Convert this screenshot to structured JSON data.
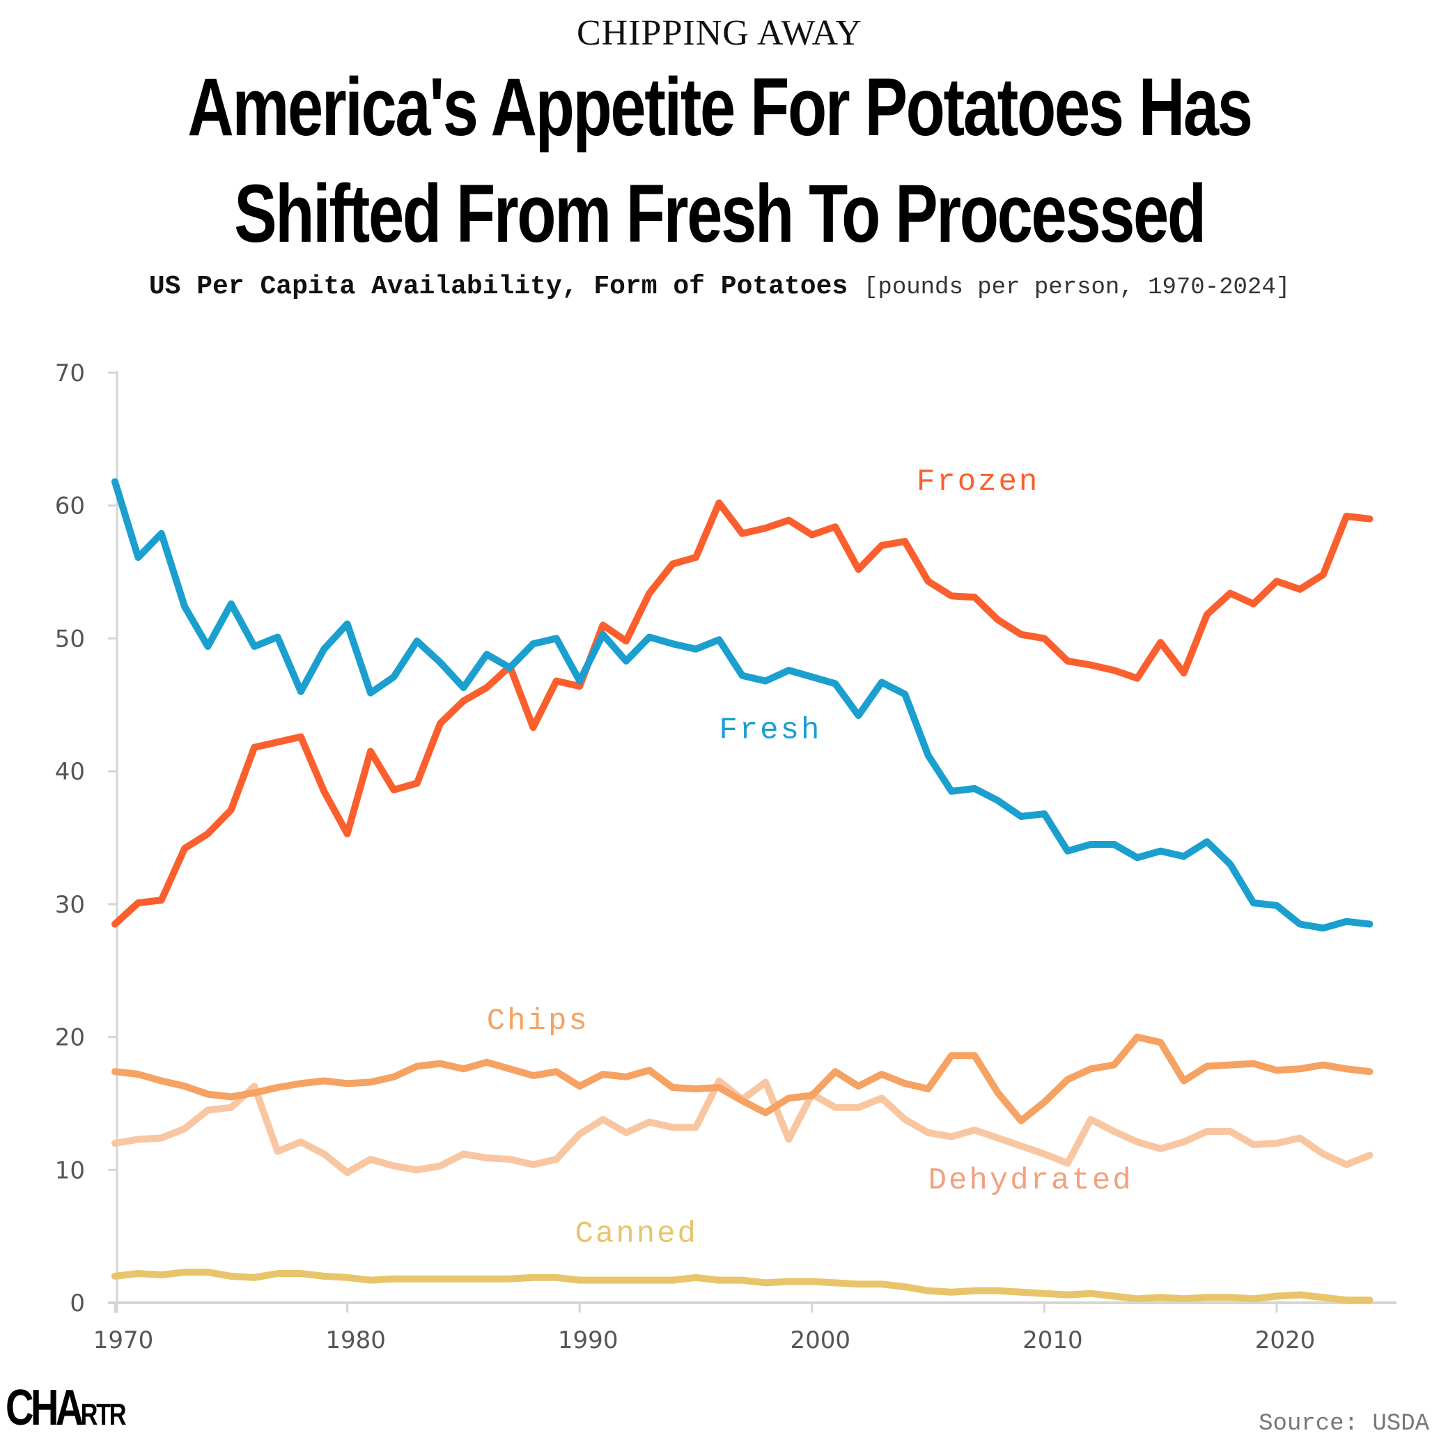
{
  "header": {
    "kicker": "CHIPPING AWAY",
    "title_line1": "America's Appetite For Potatoes Has",
    "title_line2": "Shifted From Fresh To Processed",
    "subtitle_bold": "US Per Capita Availability, Form of Potatoes",
    "subtitle_units": "[pounds per person, 1970-2024]"
  },
  "footer": {
    "logo_main": "CHA",
    "logo_small": "RTR",
    "source": "Source: USDA"
  },
  "chart_data": {
    "type": "line",
    "title": "US Per Capita Availability, Form of Potatoes",
    "xlabel": "",
    "ylabel": "pounds per person",
    "ylim": [
      0,
      70
    ],
    "xlim": [
      1970,
      2024
    ],
    "yticks": [
      0,
      10,
      20,
      30,
      40,
      50,
      60,
      70
    ],
    "xticks": [
      1970,
      1980,
      1990,
      2000,
      2010,
      2020
    ],
    "grid": false,
    "legend": "inline labels",
    "x": [
      1970,
      1971,
      1972,
      1973,
      1974,
      1975,
      1976,
      1977,
      1978,
      1979,
      1980,
      1981,
      1982,
      1983,
      1984,
      1985,
      1986,
      1987,
      1988,
      1989,
      1990,
      1991,
      1992,
      1993,
      1994,
      1995,
      1996,
      1997,
      1998,
      1999,
      2000,
      2001,
      2002,
      2003,
      2004,
      2005,
      2006,
      2007,
      2008,
      2009,
      2010,
      2011,
      2012,
      2013,
      2014,
      2015,
      2016,
      2017,
      2018,
      2019,
      2020,
      2021,
      2022,
      2023,
      2024
    ],
    "series": [
      {
        "name": "Fresh",
        "color": "#1a9fcf",
        "values": [
          61.8,
          56.1,
          57.9,
          52.4,
          49.4,
          52.6,
          49.4,
          50.1,
          46.0,
          49.2,
          51.1,
          45.9,
          47.1,
          49.8,
          48.2,
          46.3,
          48.8,
          47.8,
          49.6,
          50.0,
          46.8,
          50.3,
          48.3,
          50.1,
          49.6,
          49.2,
          49.9,
          47.2,
          46.8,
          47.6,
          47.1,
          46.6,
          44.2,
          46.7,
          45.8,
          41.2,
          38.5,
          38.7,
          37.8,
          36.6,
          36.8,
          34.0,
          34.5,
          34.5,
          33.5,
          34.0,
          33.6,
          34.7,
          33.0,
          30.1,
          29.9,
          28.5,
          28.2,
          28.7,
          28.5
        ],
        "label_at": [
          1996,
          42.5
        ]
      },
      {
        "name": "Frozen",
        "color": "#fa5f2d",
        "values": [
          28.5,
          30.1,
          30.3,
          34.2,
          35.3,
          37.1,
          41.8,
          42.2,
          42.6,
          38.5,
          35.3,
          41.5,
          38.6,
          39.1,
          43.6,
          45.3,
          46.3,
          47.9,
          43.3,
          46.8,
          46.4,
          51.0,
          49.8,
          53.4,
          55.6,
          56.1,
          60.2,
          57.9,
          58.3,
          58.9,
          57.8,
          58.4,
          55.2,
          57.0,
          57.3,
          54.3,
          53.2,
          53.1,
          51.4,
          50.3,
          50.0,
          48.3,
          48.0,
          47.6,
          47.0,
          49.7,
          47.4,
          51.8,
          53.4,
          52.6,
          54.3,
          53.7,
          54.8,
          59.2,
          59.0
        ],
        "label_at": [
          2004.5,
          61.2
        ]
      },
      {
        "name": "Chips",
        "color": "#f5a262",
        "values": [
          17.4,
          17.2,
          16.7,
          16.3,
          15.7,
          15.5,
          15.8,
          16.2,
          16.5,
          16.7,
          16.5,
          16.6,
          17.0,
          17.8,
          18.0,
          17.6,
          18.1,
          17.6,
          17.1,
          17.4,
          16.3,
          17.2,
          17.0,
          17.5,
          16.2,
          16.1,
          16.2,
          15.2,
          14.3,
          15.4,
          15.6,
          17.4,
          16.3,
          17.2,
          16.5,
          16.1,
          18.6,
          18.6,
          15.8,
          13.7,
          15.1,
          16.8,
          17.6,
          17.9,
          20.0,
          19.6,
          16.7,
          17.8,
          17.9,
          18.0,
          17.5,
          17.6,
          17.9,
          17.6,
          17.4
        ],
        "label_at": [
          1986,
          20.6
        ]
      },
      {
        "name": "Dehydrated",
        "color": "#f9c6a2",
        "values": [
          12.0,
          12.3,
          12.4,
          13.1,
          14.5,
          14.7,
          16.3,
          11.4,
          12.1,
          11.2,
          9.8,
          10.8,
          10.3,
          10.0,
          10.3,
          11.2,
          10.9,
          10.8,
          10.4,
          10.8,
          12.7,
          13.8,
          12.8,
          13.6,
          13.2,
          13.2,
          16.7,
          15.3,
          16.6,
          12.3,
          15.7,
          14.7,
          14.7,
          15.4,
          13.8,
          12.8,
          12.5,
          13.0,
          12.4,
          11.8,
          11.2,
          10.5,
          13.8,
          12.9,
          12.1,
          11.6,
          12.1,
          12.9,
          12.9,
          11.9,
          12.0,
          12.4,
          11.2,
          10.4,
          11.1
        ],
        "label_color": "#f2a07e",
        "label_at": [
          2005,
          8.6
        ]
      },
      {
        "name": "Canned",
        "color": "#e8c56a",
        "values": [
          2.0,
          2.2,
          2.1,
          2.3,
          2.3,
          2.0,
          1.9,
          2.2,
          2.2,
          2.0,
          1.9,
          1.7,
          1.8,
          1.8,
          1.8,
          1.8,
          1.8,
          1.8,
          1.9,
          1.9,
          1.7,
          1.7,
          1.7,
          1.7,
          1.7,
          1.9,
          1.7,
          1.7,
          1.5,
          1.6,
          1.6,
          1.5,
          1.4,
          1.4,
          1.2,
          0.9,
          0.8,
          0.9,
          0.9,
          0.8,
          0.7,
          0.6,
          0.7,
          0.5,
          0.3,
          0.4,
          0.3,
          0.4,
          0.4,
          0.3,
          0.5,
          0.6,
          0.4,
          0.2,
          0.2
        ],
        "label_at": [
          1989.8,
          4.6
        ]
      }
    ]
  }
}
